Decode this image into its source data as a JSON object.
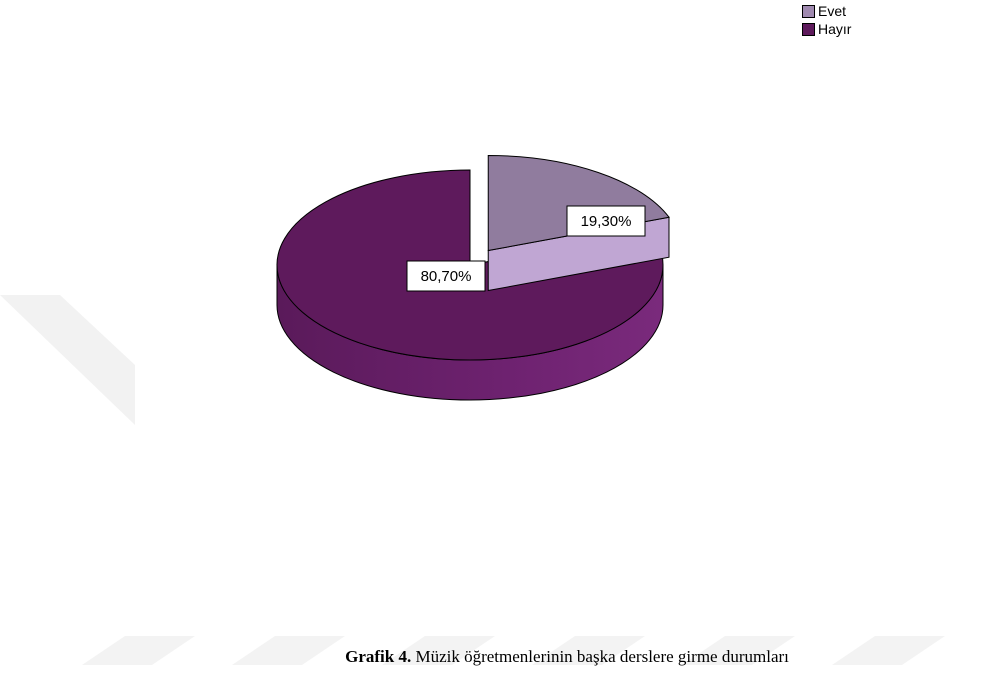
{
  "chart_data": {
    "type": "pie",
    "title": "",
    "categories": [
      "Evet",
      "Hayır"
    ],
    "values": [
      19.3,
      80.7
    ],
    "labels": [
      "19,30%",
      "80,70%"
    ],
    "colors": [
      "#a08ab0",
      "#5e1a5c"
    ],
    "legend": "top-right",
    "three_d": true,
    "exploded": "Evet"
  },
  "caption": {
    "label": "Grafik 4.",
    "text": " Müzik öğretmenlerinin başka derslere girme durumları"
  }
}
